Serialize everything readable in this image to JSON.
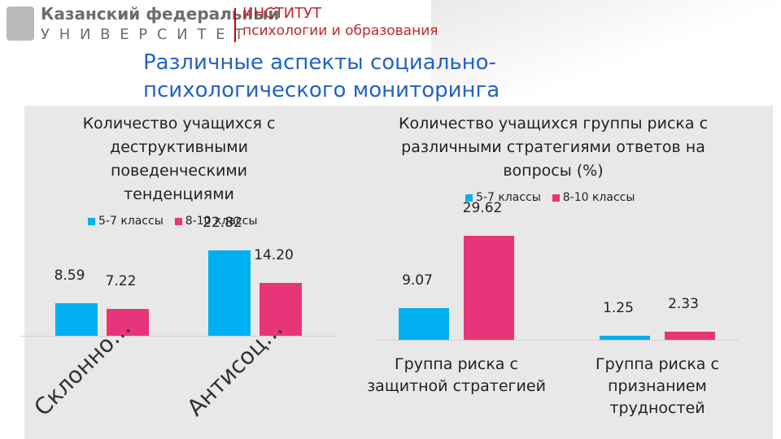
{
  "header": {
    "university_line1": "Казанский федеральный",
    "university_line2": "У Н И В Е Р С И Т Е Т",
    "institute_line1": "ИНСТИТУТ",
    "institute_line2": "психологии и образования"
  },
  "slide_title": [
    "Различные аспекты социально-",
    "психологического мониторинга"
  ],
  "chart_data": [
    {
      "type": "bar",
      "title": "Количество учащихся  с деструктивными поведенческими тенденциями",
      "categories": [
        "Склонно…",
        "Антисоц…"
      ],
      "series": [
        {
          "name": "5-7 классы",
          "color": "#00b0f0",
          "values": [
            8.59,
            22.82
          ]
        },
        {
          "name": "8-10 классы",
          "color": "#e8357a",
          "values": [
            7.22,
            14.2
          ],
          "value_labels": [
            "7.22",
            "14.20"
          ]
        }
      ],
      "legend": "top"
    },
    {
      "type": "bar",
      "title": "Количество учащихся группы риска с различными стратегиями ответов на вопросы (%)",
      "categories": [
        "Группа риска с защитной стратегией",
        "Группа риска с признанием трудностей"
      ],
      "series": [
        {
          "name": "5-7 классы",
          "color": "#00b0f0",
          "values": [
            9.07,
            1.25
          ]
        },
        {
          "name": "8-10 классы",
          "color": "#e8357a",
          "values": [
            29.62,
            2.33
          ]
        }
      ],
      "legend": "top"
    }
  ]
}
